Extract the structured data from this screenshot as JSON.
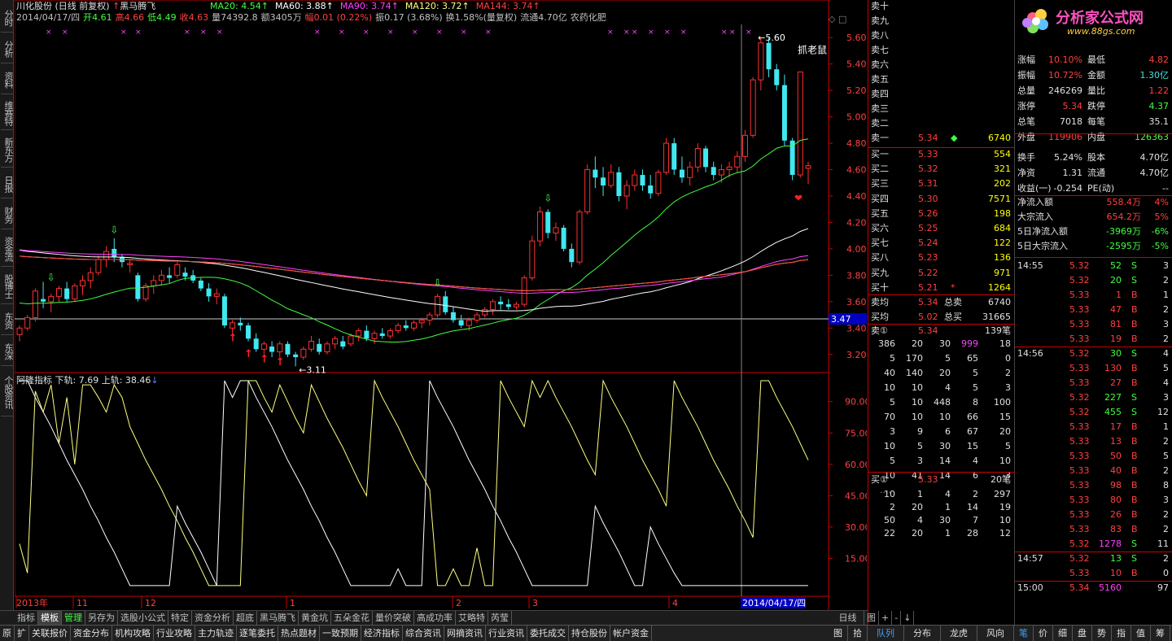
{
  "left_tabs": [
    "分时",
    "分析",
    "资料",
    "维赛特",
    "新东方",
    "日报",
    "财务",
    "资金流",
    "股博士",
    "东资",
    "东深",
    "个股资讯"
  ],
  "header": {
    "title": "川化股份 (日线 前复权)",
    "signal": "黑马腾飞",
    "ma": [
      {
        "label": "MA20: 4.54",
        "color": "#40ff40"
      },
      {
        "label": "MA60: 3.88",
        "color": "#ffffff"
      },
      {
        "label": "MA90: 3.74",
        "color": "#ff40ff"
      },
      {
        "label": "MA120: 3.72",
        "color": "#ffff80"
      },
      {
        "label": "MA144: 3.74",
        "color": "#ff4040"
      }
    ],
    "line2": [
      {
        "t": "2014/04/17/四",
        "c": "#c0c0c0"
      },
      {
        "t": "开4.61",
        "c": "#40ff40"
      },
      {
        "t": "高4.66",
        "c": "#ff4040"
      },
      {
        "t": "低4.49",
        "c": "#40ff40"
      },
      {
        "t": "收4.63",
        "c": "#ff4040"
      },
      {
        "t": "量74392.8",
        "c": "#c0c0c0"
      },
      {
        "t": "额3405万",
        "c": "#c0c0c0"
      },
      {
        "t": "幅0.01 (0.22%)",
        "c": "#ff4040"
      },
      {
        "t": "振0.17 (3.68%)",
        "c": "#c0c0c0"
      },
      {
        "t": "换1.58%(量复权)",
        "c": "#c0c0c0"
      },
      {
        "t": "流通4.70亿",
        "c": "#c0c0c0"
      },
      {
        "t": "农药化肥",
        "c": "#c0c0c0"
      }
    ]
  },
  "price_axis": [
    "5.60",
    "5.40",
    "5.20",
    "5.00",
    "4.80",
    "4.60",
    "4.40",
    "4.20",
    "4.00",
    "3.80",
    "3.60",
    "3.40",
    "3.20"
  ],
  "crosshair_price": "3.47",
  "annotations": {
    "high": "5.60",
    "low": "3.11",
    "trap": "抓老鼠"
  },
  "indicator": {
    "name": "阿隆指标",
    "lower_label": "下轨: 7.69",
    "upper_label": "上轨: 38.46",
    "axis": [
      "90.00",
      "75.00",
      "60.00",
      "45.00",
      "30.00",
      "15.00"
    ]
  },
  "date_axis": {
    "labels": [
      "2013年",
      "11",
      "12",
      "1",
      "2",
      "3",
      "4"
    ],
    "cursor": "2014/04/17/四",
    "period": "日线"
  },
  "chart_data": {
    "type": "candlestick",
    "title": "川化股份 (日线 前复权)",
    "ylim": [
      3.1,
      5.7
    ],
    "candles": [
      [
        3.35,
        3.42,
        3.3,
        3.4
      ],
      [
        3.4,
        3.5,
        3.38,
        3.48
      ],
      [
        3.48,
        3.7,
        3.45,
        3.68
      ],
      [
        3.62,
        3.75,
        3.55,
        3.6
      ],
      [
        3.6,
        3.66,
        3.52,
        3.64
      ],
      [
        3.64,
        3.72,
        3.6,
        3.7
      ],
      [
        3.7,
        3.75,
        3.6,
        3.62
      ],
      [
        3.62,
        3.74,
        3.6,
        3.72
      ],
      [
        3.72,
        3.8,
        3.65,
        3.76
      ],
      [
        3.76,
        3.86,
        3.7,
        3.82
      ],
      [
        3.82,
        3.95,
        3.8,
        3.92
      ],
      [
        3.92,
        4.02,
        3.86,
        3.98
      ],
      [
        4.0,
        4.08,
        3.9,
        3.94
      ],
      [
        3.94,
        3.96,
        3.86,
        3.9
      ],
      [
        3.88,
        3.92,
        3.82,
        3.89
      ],
      [
        3.8,
        3.82,
        3.6,
        3.62
      ],
      [
        3.62,
        3.74,
        3.6,
        3.72
      ],
      [
        3.72,
        3.8,
        3.66,
        3.76
      ],
      [
        3.76,
        3.84,
        3.72,
        3.8
      ],
      [
        3.8,
        3.86,
        3.74,
        3.78
      ],
      [
        3.8,
        3.9,
        3.78,
        3.88
      ],
      [
        3.82,
        3.86,
        3.76,
        3.79
      ],
      [
        3.8,
        3.84,
        3.74,
        3.76
      ],
      [
        3.76,
        3.78,
        3.68,
        3.7
      ],
      [
        3.7,
        3.74,
        3.6,
        3.64
      ],
      [
        3.64,
        3.7,
        3.58,
        3.66
      ],
      [
        3.64,
        3.66,
        3.4,
        3.42
      ],
      [
        3.4,
        3.46,
        3.34,
        3.44
      ],
      [
        3.44,
        3.48,
        3.38,
        3.42
      ],
      [
        3.42,
        3.44,
        3.3,
        3.32
      ],
      [
        3.32,
        3.36,
        3.22,
        3.24
      ],
      [
        3.24,
        3.3,
        3.2,
        3.28
      ],
      [
        3.26,
        3.3,
        3.18,
        3.22
      ],
      [
        3.22,
        3.3,
        3.18,
        3.28
      ],
      [
        3.28,
        3.3,
        3.18,
        3.2
      ],
      [
        3.2,
        3.22,
        3.11,
        3.18
      ],
      [
        3.18,
        3.26,
        3.16,
        3.24
      ],
      [
        3.24,
        3.34,
        3.22,
        3.3
      ],
      [
        3.28,
        3.32,
        3.2,
        3.22
      ],
      [
        3.22,
        3.3,
        3.2,
        3.28
      ],
      [
        3.28,
        3.34,
        3.24,
        3.32
      ],
      [
        3.3,
        3.34,
        3.24,
        3.26
      ],
      [
        3.28,
        3.36,
        3.26,
        3.34
      ],
      [
        3.34,
        3.4,
        3.3,
        3.38
      ],
      [
        3.38,
        3.42,
        3.3,
        3.32
      ],
      [
        3.32,
        3.38,
        3.28,
        3.36
      ],
      [
        3.36,
        3.4,
        3.32,
        3.34
      ],
      [
        3.34,
        3.4,
        3.32,
        3.38
      ],
      [
        3.38,
        3.44,
        3.36,
        3.42
      ],
      [
        3.42,
        3.46,
        3.38,
        3.4
      ],
      [
        3.4,
        3.46,
        3.38,
        3.44
      ],
      [
        3.44,
        3.48,
        3.4,
        3.46
      ],
      [
        3.46,
        3.52,
        3.42,
        3.5
      ],
      [
        3.5,
        3.66,
        3.48,
        3.64
      ],
      [
        3.64,
        3.68,
        3.5,
        3.52
      ],
      [
        3.52,
        3.56,
        3.44,
        3.46
      ],
      [
        3.46,
        3.5,
        3.4,
        3.42
      ],
      [
        3.42,
        3.48,
        3.38,
        3.46
      ],
      [
        3.46,
        3.52,
        3.44,
        3.5
      ],
      [
        3.5,
        3.56,
        3.48,
        3.54
      ],
      [
        3.54,
        3.62,
        3.5,
        3.6
      ],
      [
        3.6,
        3.64,
        3.54,
        3.58
      ],
      [
        3.58,
        3.62,
        3.54,
        3.56
      ],
      [
        3.56,
        3.6,
        3.54,
        3.58
      ],
      [
        3.58,
        3.8,
        3.56,
        3.78
      ],
      [
        3.78,
        4.1,
        3.76,
        4.06
      ],
      [
        4.06,
        4.32,
        4.02,
        4.28
      ],
      [
        4.28,
        4.3,
        4.08,
        4.12
      ],
      [
        4.12,
        4.2,
        4.06,
        4.16
      ],
      [
        4.16,
        4.18,
        3.98,
        4.0
      ],
      [
        4.0,
        4.04,
        3.86,
        3.9
      ],
      [
        3.9,
        4.3,
        3.88,
        4.28
      ],
      [
        4.28,
        4.64,
        4.26,
        4.6
      ],
      [
        4.6,
        4.7,
        4.46,
        4.54
      ],
      [
        4.54,
        4.62,
        4.4,
        4.48
      ],
      [
        4.48,
        4.64,
        4.46,
        4.58
      ],
      [
        4.58,
        4.62,
        4.36,
        4.4
      ],
      [
        4.4,
        4.52,
        4.3,
        4.48
      ],
      [
        4.48,
        4.6,
        4.44,
        4.56
      ],
      [
        4.56,
        4.6,
        4.44,
        4.48
      ],
      [
        4.48,
        4.56,
        4.38,
        4.42
      ],
      [
        4.42,
        4.6,
        4.4,
        4.58
      ],
      [
        4.58,
        4.84,
        4.56,
        4.8
      ],
      [
        4.8,
        4.84,
        4.56,
        4.6
      ],
      [
        4.6,
        4.7,
        4.5,
        4.54
      ],
      [
        4.54,
        4.66,
        4.48,
        4.62
      ],
      [
        4.62,
        4.8,
        4.58,
        4.76
      ],
      [
        4.76,
        4.78,
        4.58,
        4.62
      ],
      [
        4.62,
        4.66,
        4.52,
        4.56
      ],
      [
        4.56,
        4.64,
        4.5,
        4.6
      ],
      [
        4.6,
        4.66,
        4.54,
        4.62
      ],
      [
        4.62,
        4.74,
        4.58,
        4.7
      ],
      [
        4.7,
        4.9,
        4.66,
        4.86
      ],
      [
        4.86,
        5.3,
        4.84,
        5.28
      ],
      [
        5.28,
        5.6,
        5.2,
        5.56
      ],
      [
        5.56,
        5.6,
        5.3,
        5.36
      ],
      [
        5.36,
        5.4,
        5.2,
        5.24
      ],
      [
        5.24,
        5.32,
        4.78,
        4.82
      ],
      [
        4.82,
        4.84,
        4.52,
        4.56
      ],
      [
        4.56,
        5.34,
        4.54,
        5.34
      ],
      [
        4.61,
        4.66,
        4.49,
        4.63
      ]
    ],
    "ma_lines": {
      "MA20": {
        "color": "#40ff40"
      },
      "MA60": {
        "color": "#ffffff"
      },
      "MA90": {
        "color": "#ff40ff"
      },
      "MA120": {
        "color": "#ffff80"
      },
      "MA144": {
        "color": "#ff4040"
      }
    },
    "indicator_ylim": [
      0,
      100
    ],
    "aroon_up": [
      22,
      8,
      95,
      85,
      98,
      70,
      92,
      60,
      98,
      98,
      92,
      85,
      98,
      92,
      78,
      70,
      62,
      55,
      48,
      40,
      33,
      25,
      18,
      10,
      2,
      2,
      2,
      2,
      2,
      100,
      100,
      92,
      85,
      98,
      90,
      82,
      75,
      98,
      90,
      82,
      75,
      68,
      60,
      52,
      45,
      100,
      92,
      85,
      78,
      70,
      62,
      55,
      48,
      2,
      2,
      10,
      2,
      2,
      20,
      2,
      2,
      100,
      92,
      85,
      78,
      100,
      92,
      100,
      92,
      85,
      78,
      70,
      62,
      55,
      100,
      92,
      85,
      78,
      70,
      62,
      55,
      48,
      40,
      100,
      92,
      85,
      78,
      70,
      62,
      55,
      48,
      40,
      33,
      25,
      100,
      100,
      92,
      85,
      78,
      70,
      62
    ],
    "aroon_down": [
      100,
      100,
      92,
      85,
      78,
      70,
      62,
      55,
      48,
      40,
      33,
      25,
      18,
      10,
      2,
      2,
      2,
      2,
      2,
      2,
      40,
      32,
      25,
      18,
      10,
      2,
      100,
      92,
      100,
      100,
      92,
      85,
      78,
      70,
      62,
      55,
      48,
      40,
      33,
      25,
      18,
      10,
      2,
      2,
      2,
      2,
      2,
      2,
      10,
      2,
      2,
      2,
      100,
      92,
      85,
      78,
      70,
      62,
      55,
      48,
      40,
      33,
      25,
      18,
      10,
      2,
      2,
      2,
      2,
      2,
      2,
      2,
      2,
      40,
      32,
      25,
      18,
      10,
      2,
      2,
      30,
      22,
      15,
      8,
      2,
      2,
      2,
      2,
      2,
      2,
      2,
      2,
      2,
      2,
      2,
      2,
      2,
      2,
      2,
      2,
      2
    ]
  },
  "order_book": {
    "asks": [
      {
        "l": "卖十",
        "p": "",
        "v": ""
      },
      {
        "l": "卖九",
        "p": "",
        "v": ""
      },
      {
        "l": "卖八",
        "p": "",
        "v": ""
      },
      {
        "l": "卖七",
        "p": "",
        "v": ""
      },
      {
        "l": "卖六",
        "p": "",
        "v": ""
      },
      {
        "l": "卖五",
        "p": "",
        "v": ""
      },
      {
        "l": "卖四",
        "p": "",
        "v": ""
      },
      {
        "l": "卖三",
        "p": "",
        "v": ""
      },
      {
        "l": "卖二",
        "p": "",
        "v": ""
      },
      {
        "l": "卖一",
        "p": "5.34",
        "v": "6740"
      }
    ],
    "bids": [
      {
        "l": "买一",
        "p": "5.33",
        "v": "554"
      },
      {
        "l": "买二",
        "p": "5.32",
        "v": "321"
      },
      {
        "l": "买三",
        "p": "5.31",
        "v": "202"
      },
      {
        "l": "买四",
        "p": "5.30",
        "v": "7571"
      },
      {
        "l": "买五",
        "p": "5.26",
        "v": "198"
      },
      {
        "l": "买六",
        "p": "5.25",
        "v": "684"
      },
      {
        "l": "买七",
        "p": "5.24",
        "v": "122"
      },
      {
        "l": "买八",
        "p": "5.23",
        "v": "136"
      },
      {
        "l": "买九",
        "p": "5.22",
        "v": "971"
      },
      {
        "l": "买十",
        "p": "5.21",
        "v": "1264"
      }
    ],
    "avg_sell": {
      "l": "卖均",
      "p": "5.34",
      "tl": "总卖",
      "tv": "6740"
    },
    "avg_buy": {
      "l": "买均",
      "p": "5.02",
      "tl": "总买",
      "tv": "31665"
    },
    "sell_queue": {
      "l": "卖①",
      "p": "5.34",
      "n": "139笔",
      "rows": [
        [
          "386",
          "20",
          "30",
          "999",
          "18"
        ],
        [
          "5",
          "170",
          "5",
          "65",
          "0"
        ],
        [
          "40",
          "140",
          "20",
          "5",
          "2"
        ],
        [
          "10",
          "10",
          "4",
          "5",
          "3"
        ],
        [
          "5",
          "10",
          "448",
          "8",
          "100"
        ],
        [
          "70",
          "10",
          "10",
          "66",
          "15"
        ],
        [
          "3",
          "9",
          "6",
          "67",
          "20"
        ],
        [
          "10",
          "5",
          "30",
          "15",
          "5"
        ],
        [
          "5",
          "3",
          "14",
          "4",
          "10"
        ],
        [
          "10",
          "41",
          "14",
          "6",
          "3"
        ]
      ]
    },
    "buy_queue": {
      "l": "买①",
      "p": "5.33",
      "n": "20笔",
      "rows": [
        [
          "10",
          "1",
          "4",
          "2",
          "297"
        ],
        [
          "2",
          "20",
          "1",
          "14",
          "19"
        ],
        [
          "50",
          "4",
          "30",
          "7",
          "10"
        ],
        [
          "22",
          "20",
          "1",
          "28",
          "12"
        ]
      ]
    }
  },
  "stats": [
    {
      "a": "涨幅",
      "b": "10.10%",
      "c": "最低",
      "d": "4.82"
    },
    {
      "a": "振幅",
      "b": "10.72%",
      "c": "金额",
      "d": "1.30亿"
    },
    {
      "a": "总量",
      "b": "246269",
      "c": "量比",
      "d": "1.22"
    },
    {
      "a": "涨停",
      "b": "5.34",
      "c": "跌停",
      "d": "4.37"
    },
    {
      "a": "总笔",
      "b": "7018",
      "c": "每笔",
      "d": "35.1"
    },
    {
      "a": "外盘",
      "b": "119906",
      "c": "内盘",
      "d": "126363"
    },
    {
      "a": "换手",
      "b": "5.24%",
      "c": "股本",
      "d": "4.70亿"
    },
    {
      "a": "净资",
      "b": "1.31",
      "c": "流通",
      "d": "4.70亿"
    },
    {
      "a": "收益(一)",
      "b": "-0.254",
      "c": "PE(动)",
      "d": "--"
    }
  ],
  "flows": [
    {
      "a": "净流入额",
      "b": "558.4万",
      "c": "4%"
    },
    {
      "a": "大宗流入",
      "b": "654.2万",
      "c": "5%"
    },
    {
      "a": "5日净流入额",
      "b": "-3969万",
      "c": "-6%"
    },
    {
      "a": "5日大宗流入",
      "b": "-2595万",
      "c": "-5%"
    }
  ],
  "ticks": [
    {
      "t": "14:55",
      "p": "5.32",
      "v": "52",
      "s": "S",
      "n": "3"
    },
    {
      "t": "",
      "p": "5.32",
      "v": "20",
      "s": "S",
      "n": "2"
    },
    {
      "t": "",
      "p": "5.33",
      "v": "1",
      "s": "B",
      "n": "1"
    },
    {
      "t": "",
      "p": "5.33",
      "v": "47",
      "s": "B",
      "n": "2"
    },
    {
      "t": "",
      "p": "5.33",
      "v": "81",
      "s": "B",
      "n": "3"
    },
    {
      "t": "",
      "p": "5.33",
      "v": "19",
      "s": "B",
      "n": "2"
    },
    {
      "t": "14:56",
      "p": "5.32",
      "v": "30",
      "s": "S",
      "n": "4"
    },
    {
      "t": "",
      "p": "5.33",
      "v": "130",
      "s": "B",
      "n": "5"
    },
    {
      "t": "",
      "p": "5.33",
      "v": "27",
      "s": "B",
      "n": "4"
    },
    {
      "t": "",
      "p": "5.32",
      "v": "227",
      "s": "S",
      "n": "3"
    },
    {
      "t": "",
      "p": "5.32",
      "v": "455",
      "s": "S",
      "n": "12"
    },
    {
      "t": "",
      "p": "5.33",
      "v": "17",
      "s": "B",
      "n": "1"
    },
    {
      "t": "",
      "p": "5.33",
      "v": "13",
      "s": "B",
      "n": "2"
    },
    {
      "t": "",
      "p": "5.33",
      "v": "50",
      "s": "B",
      "n": "5"
    },
    {
      "t": "",
      "p": "5.33",
      "v": "40",
      "s": "B",
      "n": "2"
    },
    {
      "t": "",
      "p": "5.33",
      "v": "98",
      "s": "B",
      "n": "8"
    },
    {
      "t": "",
      "p": "5.33",
      "v": "80",
      "s": "B",
      "n": "3"
    },
    {
      "t": "",
      "p": "5.33",
      "v": "26",
      "s": "B",
      "n": "2"
    },
    {
      "t": "",
      "p": "5.33",
      "v": "83",
      "s": "B",
      "n": "2"
    },
    {
      "t": "",
      "p": "5.32",
      "v": "1278",
      "s": "S",
      "n": "11"
    },
    {
      "t": "14:57",
      "p": "5.32",
      "v": "13",
      "s": "S",
      "n": "2"
    },
    {
      "t": "",
      "p": "5.33",
      "v": "10",
      "s": "B",
      "n": "0"
    },
    {
      "t": "15:00",
      "p": "5.34",
      "v": "5160",
      "s": "",
      "n": "97"
    }
  ],
  "logo": {
    "name": "分析家公式网",
    "url": "www.88gs.com"
  },
  "bottom_tabs": [
    "指标",
    "模板",
    "管理",
    "另存为",
    "选股小公式",
    "特定",
    "资金分析",
    "超底",
    "黑马腾飞",
    "黄金坑",
    "五朵金花",
    "量价突破",
    "高成功率",
    "艾略特",
    "芮莹"
  ],
  "menu": [
    "原",
    "扩",
    "关联报价",
    "资金分布",
    "机构攻略",
    "行业攻略",
    "主力轨迹",
    "逐笔委托",
    "热点题材",
    "一致预期",
    "经济指标",
    "综合资讯",
    "网摘资讯",
    "行业资讯",
    "委托成交",
    "持仓股份",
    "帐户资金"
  ],
  "menu_right": [
    "图",
    "拾"
  ],
  "right_tabs": [
    "队列",
    "分布",
    "龙虎",
    "风向"
  ],
  "right_mini_tabs": [
    "笔",
    "价",
    "细",
    "盘",
    "势",
    "指",
    "值",
    "筹"
  ],
  "bottom_ctrl": [
    "日线",
    "图",
    "+",
    "-",
    "↓"
  ]
}
